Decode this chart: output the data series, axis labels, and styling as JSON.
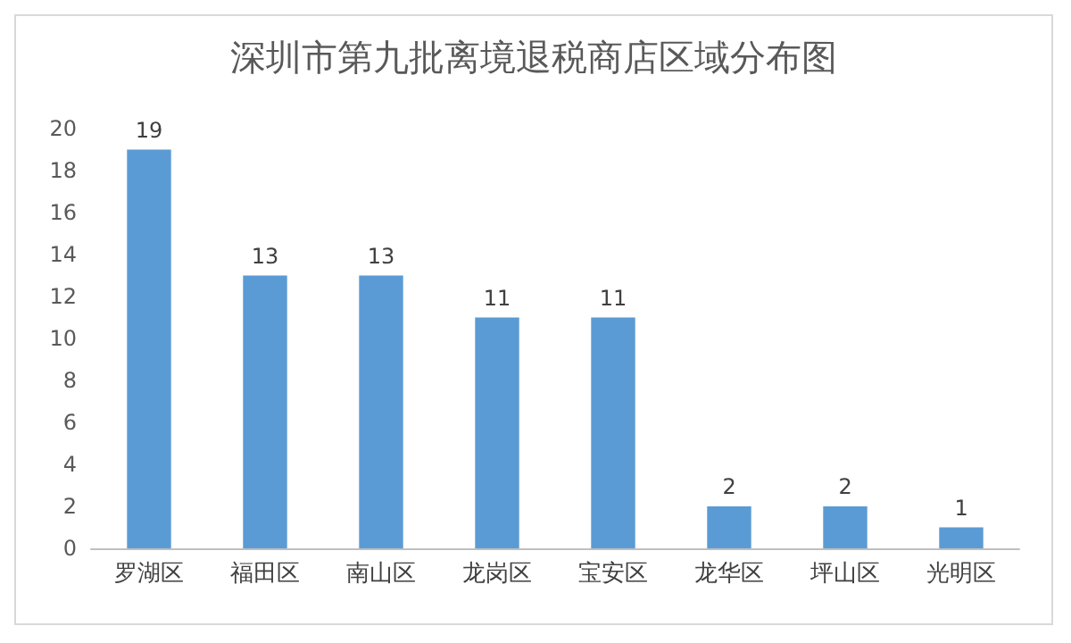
{
  "chart_data": {
    "type": "bar",
    "title": "深圳市第九批离境退税商店区域分布图",
    "categories": [
      "罗湖区",
      "福田区",
      "南山区",
      "龙岗区",
      "宝安区",
      "龙华区",
      "坪山区",
      "光明区"
    ],
    "values": [
      19,
      13,
      13,
      11,
      11,
      2,
      2,
      1
    ],
    "color": "#5b9bd5",
    "ylim": [
      0,
      20
    ],
    "yticks": [
      0,
      2,
      4,
      6,
      8,
      10,
      12,
      14,
      16,
      18,
      20
    ],
    "grid": false,
    "data_labels": true
  }
}
